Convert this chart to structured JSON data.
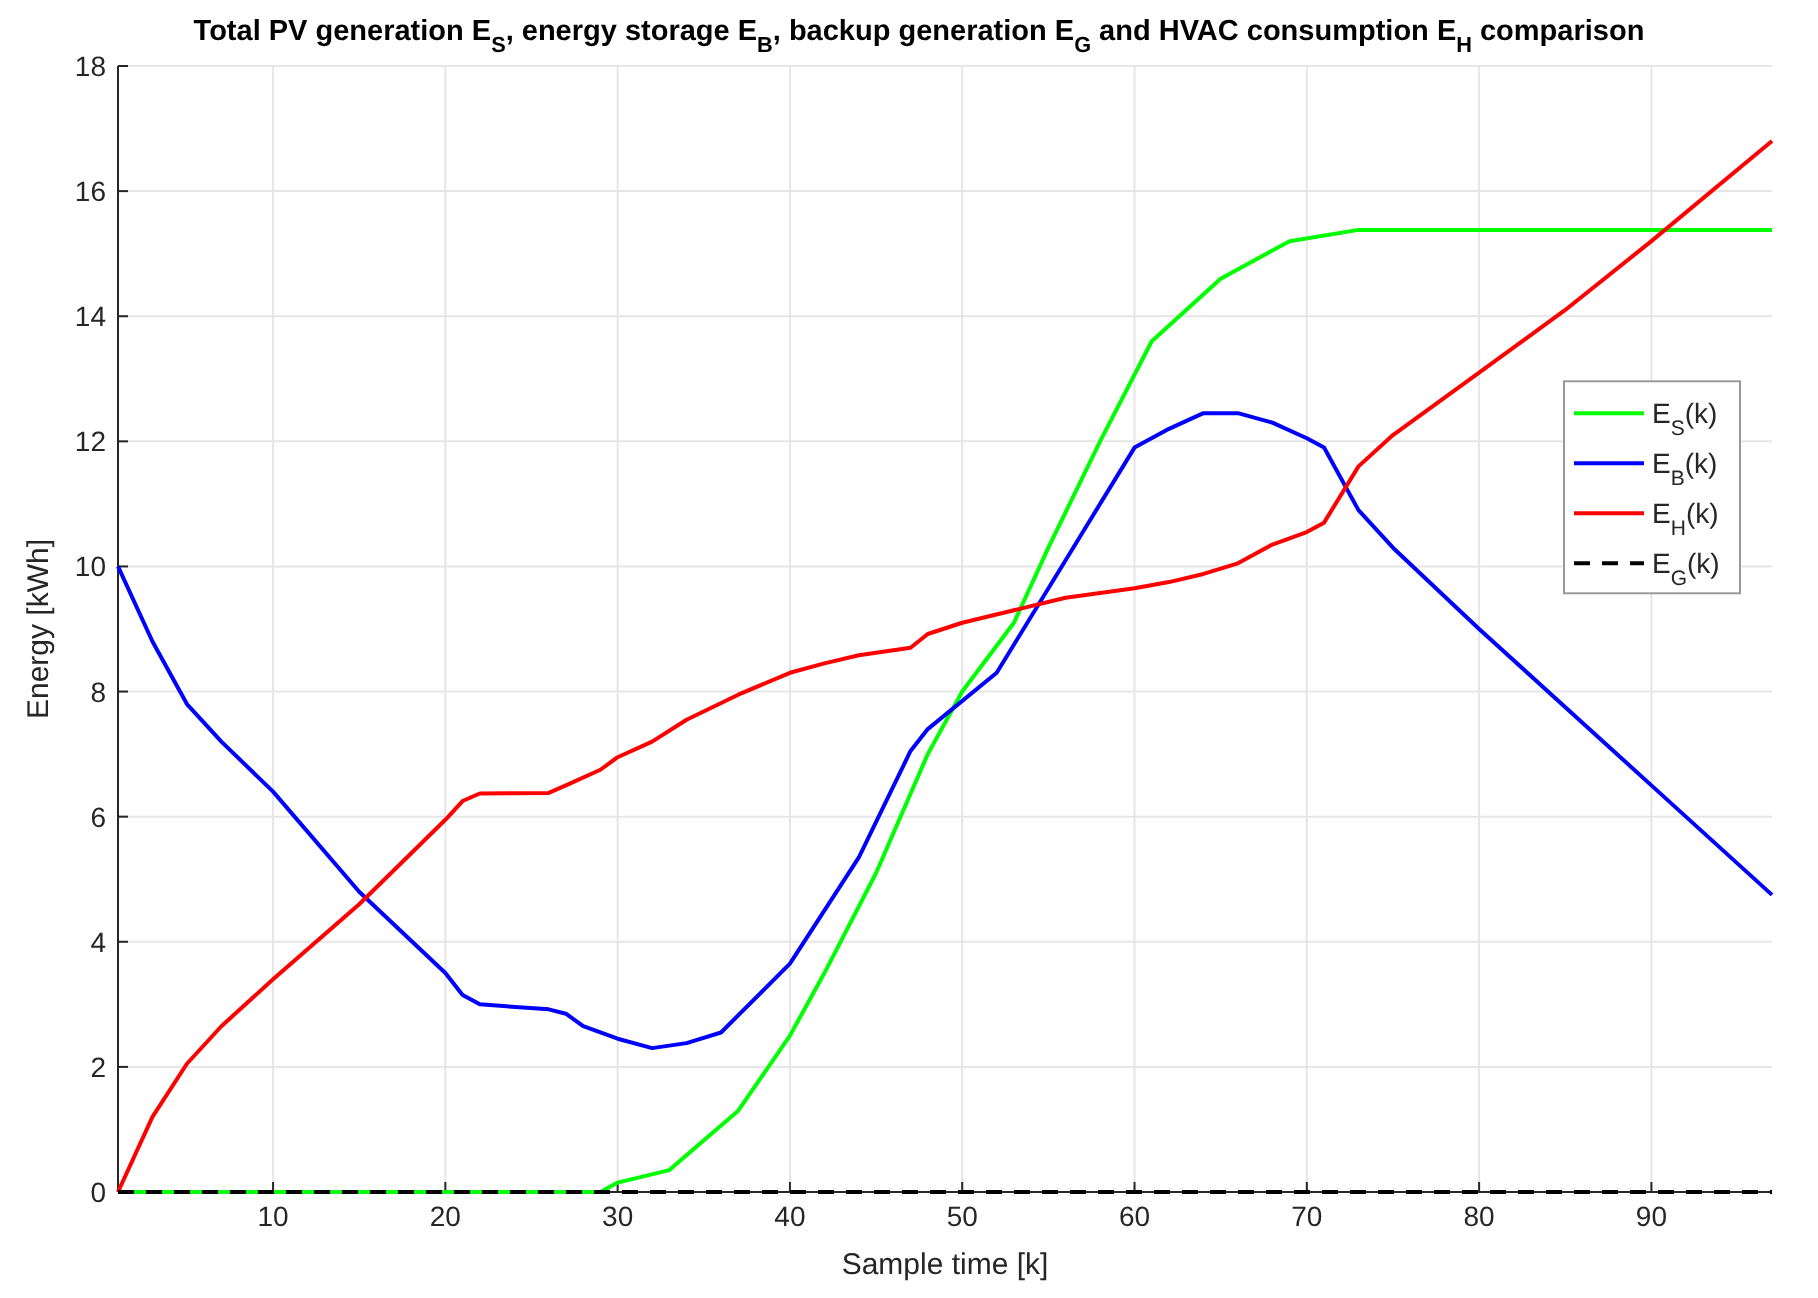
{
  "chart_data": {
    "type": "line",
    "title": "Total PV generation E$_{S}$, energy storage E$_{B}$, backup generation E$_{G}$ and HVAC consumption E$_{H}$ comparison",
    "xlabel": "Sample time [k]",
    "ylabel": "Energy [kWh]",
    "xlim": [
      1,
      97
    ],
    "xticks": [
      10,
      20,
      30,
      40,
      50,
      60,
      70,
      80,
      90
    ],
    "ylim": [
      0,
      18
    ],
    "yticks": [
      0,
      2,
      4,
      6,
      8,
      10,
      12,
      14,
      16,
      18
    ],
    "grid": true,
    "legend": "right",
    "line_style": "solid",
    "series": [
      {
        "name": "E$_{S}$(k)",
        "color": "#00ff00",
        "x": [
          1,
          29,
          30,
          33,
          37,
          40,
          42,
          45,
          48,
          50,
          53,
          55,
          58,
          61,
          63,
          65,
          69,
          73,
          97
        ],
        "values": [
          0,
          0,
          0.15,
          0.35,
          1.3,
          2.5,
          3.5,
          5.1,
          7.0,
          8.0,
          9.1,
          10.3,
          12.0,
          13.6,
          14.1,
          14.6,
          15.2,
          15.38,
          15.38
        ]
      },
      {
        "name": "E$_{B}$(k)",
        "color": "#0000ff",
        "x": [
          1,
          3,
          5,
          7,
          10,
          15,
          20,
          21,
          22,
          26,
          27,
          28,
          30,
          32,
          34,
          36,
          40,
          44,
          47,
          48,
          52,
          56,
          60,
          62,
          64,
          66,
          68,
          70,
          71,
          73,
          75,
          80,
          90,
          97
        ],
        "values": [
          10,
          8.8,
          7.8,
          7.2,
          6.4,
          4.8,
          3.5,
          3.15,
          3.0,
          2.92,
          2.85,
          2.65,
          2.45,
          2.3,
          2.38,
          2.55,
          3.65,
          5.35,
          7.05,
          7.4,
          8.3,
          10.1,
          11.9,
          12.2,
          12.45,
          12.45,
          12.3,
          12.05,
          11.9,
          10.9,
          10.3,
          9.0,
          6.5,
          4.75
        ]
      },
      {
        "name": "E$_{H}$(k)",
        "color": "#ff0000",
        "x": [
          1,
          3,
          5,
          7,
          10,
          15,
          20,
          21,
          22,
          26,
          27,
          29,
          30,
          32,
          34,
          37,
          40,
          42,
          44,
          47,
          48,
          50,
          53,
          56,
          60,
          62,
          64,
          66,
          68,
          70,
          71,
          73,
          75,
          80,
          85,
          90,
          97
        ],
        "values": [
          0,
          1.2,
          2.05,
          2.65,
          3.4,
          4.6,
          5.95,
          6.25,
          6.37,
          6.38,
          6.5,
          6.75,
          6.95,
          7.2,
          7.55,
          7.95,
          8.3,
          8.45,
          8.58,
          8.7,
          8.92,
          9.1,
          9.3,
          9.5,
          9.65,
          9.75,
          9.88,
          10.05,
          10.35,
          10.55,
          10.7,
          11.6,
          12.1,
          13.1,
          14.1,
          15.2,
          16.8
        ]
      },
      {
        "name": "E$_{G}$(k)",
        "color": "#000000",
        "line_style": "dashed",
        "x": [
          1,
          97
        ],
        "values": [
          0,
          0
        ]
      }
    ]
  }
}
